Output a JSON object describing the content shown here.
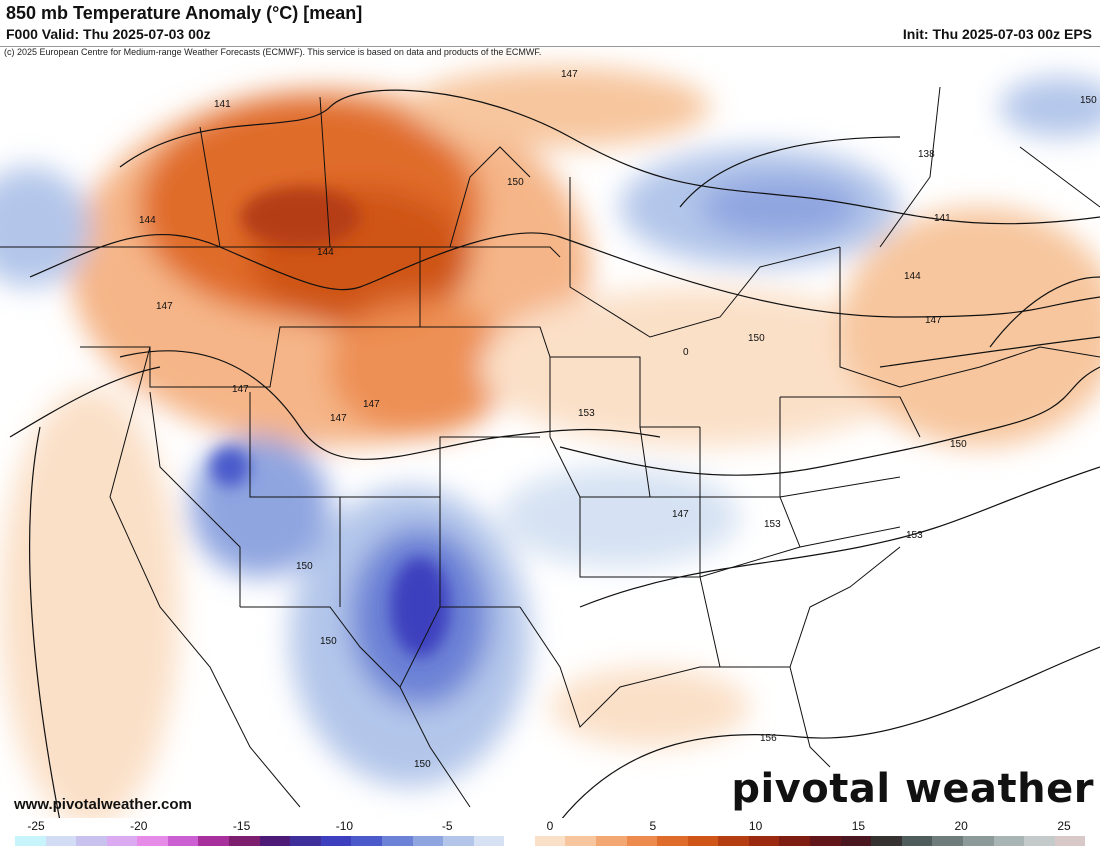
{
  "header": {
    "title": "850 mb Temperature Anomaly (°C) [mean]",
    "valid": "F000 Valid: Thu 2025-07-03 00z",
    "init": "Init: Thu 2025-07-03 00z EPS",
    "copyright": "(c) 2025 European Centre for Medium-range Weather Forecasts (ECMWF). This service is based on data and products of the ECMWF."
  },
  "footer": {
    "site": "www.pivotalweather.com",
    "brand": "pivotal weather"
  },
  "contour_labels": [
    {
      "id": "c141a",
      "text": "141"
    },
    {
      "id": "c144a",
      "text": "144"
    },
    {
      "id": "c144b",
      "text": "144"
    },
    {
      "id": "c147a",
      "text": "147"
    },
    {
      "id": "c147b",
      "text": "147"
    },
    {
      "id": "c147c",
      "text": "147"
    },
    {
      "id": "c147d",
      "text": "147"
    },
    {
      "id": "c147e",
      "text": "147"
    },
    {
      "id": "c150a",
      "text": "150"
    },
    {
      "id": "c150b",
      "text": "150"
    },
    {
      "id": "c150c",
      "text": "150"
    },
    {
      "id": "c150d",
      "text": "150"
    },
    {
      "id": "c150e",
      "text": "150"
    },
    {
      "id": "c150f",
      "text": "150"
    },
    {
      "id": "c153a",
      "text": "153"
    },
    {
      "id": "c153b",
      "text": "153"
    },
    {
      "id": "c153c",
      "text": "153"
    },
    {
      "id": "c156a",
      "text": "156"
    },
    {
      "id": "c138a",
      "text": "138"
    },
    {
      "id": "c141b",
      "text": "141"
    },
    {
      "id": "c144c",
      "text": "144"
    },
    {
      "id": "c147f",
      "text": "147"
    },
    {
      "id": "c147g",
      "text": "147"
    },
    {
      "id": "c150g",
      "text": "150"
    },
    {
      "id": "c0a",
      "text": "0"
    }
  ],
  "colorbar": {
    "tick_labels": [
      "-25",
      "-20",
      "-15",
      "-10",
      "-5",
      "0",
      "5",
      "10",
      "15",
      "20",
      "25"
    ],
    "colors": [
      "#c8f4fb",
      "#d3dcf5",
      "#c9c2ef",
      "#dcaaf0",
      "#e68ce8",
      "#cc60d2",
      "#a8309c",
      "#7d1f6e",
      "#4d1a78",
      "#3e2f9a",
      "#3d3fbe",
      "#4a5acb",
      "#6c82d6",
      "#8fa5e0",
      "#b3c6ea",
      "#d6e2f3",
      "#ffffff",
      "#fbe0c8",
      "#f7c69e",
      "#f3a873",
      "#ec8b4d",
      "#e06c2c",
      "#cf5519",
      "#b53d12",
      "#9b2a10",
      "#7f1d13",
      "#62161a",
      "#4a1620",
      "#363232",
      "#4f5c5c",
      "#6e7c7c",
      "#8c9a9a",
      "#a9b4b4",
      "#c4caca",
      "#d8c8c8"
    ]
  }
}
